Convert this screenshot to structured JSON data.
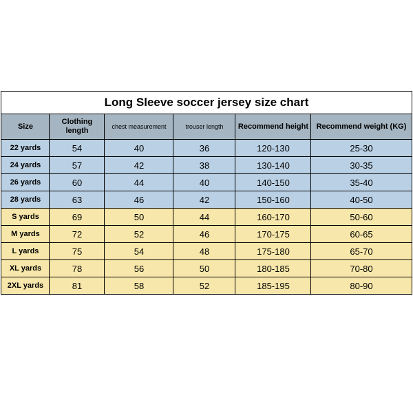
{
  "chart": {
    "title": "Long Sleeve soccer jersey size chart",
    "columns": [
      {
        "label": "Size",
        "small": false
      },
      {
        "label": "Clothing length",
        "small": false
      },
      {
        "label": "chest measurement",
        "small": true
      },
      {
        "label": "trouser length",
        "small": true
      },
      {
        "label": "Recommend height",
        "small": false
      },
      {
        "label": "Recommend weight (KG)",
        "small": false
      }
    ],
    "rows": [
      {
        "group": "blue",
        "cells": [
          "22 yards",
          "54",
          "40",
          "36",
          "120-130",
          "25-30"
        ]
      },
      {
        "group": "blue",
        "cells": [
          "24 yards",
          "57",
          "42",
          "38",
          "130-140",
          "30-35"
        ]
      },
      {
        "group": "blue",
        "cells": [
          "26 yards",
          "60",
          "44",
          "40",
          "140-150",
          "35-40"
        ]
      },
      {
        "group": "blue",
        "cells": [
          "28 yards",
          "63",
          "46",
          "42",
          "150-160",
          "40-50"
        ]
      },
      {
        "group": "yellow",
        "cells": [
          "S yards",
          "69",
          "50",
          "44",
          "160-170",
          "50-60"
        ]
      },
      {
        "group": "yellow",
        "cells": [
          "M yards",
          "72",
          "52",
          "46",
          "170-175",
          "60-65"
        ]
      },
      {
        "group": "yellow",
        "cells": [
          "L yards",
          "75",
          "54",
          "48",
          "175-180",
          "65-70"
        ]
      },
      {
        "group": "yellow",
        "cells": [
          "XL yards",
          "78",
          "56",
          "50",
          "180-185",
          "70-80"
        ]
      },
      {
        "group": "yellow",
        "cells": [
          "2XL yards",
          "81",
          "58",
          "52",
          "185-195",
          "80-90"
        ]
      }
    ],
    "colors": {
      "header_bg": "#a5b5c2",
      "blue_bg": "#bad0e4",
      "yellow_bg": "#f7e7aa",
      "border": "#000000"
    }
  }
}
